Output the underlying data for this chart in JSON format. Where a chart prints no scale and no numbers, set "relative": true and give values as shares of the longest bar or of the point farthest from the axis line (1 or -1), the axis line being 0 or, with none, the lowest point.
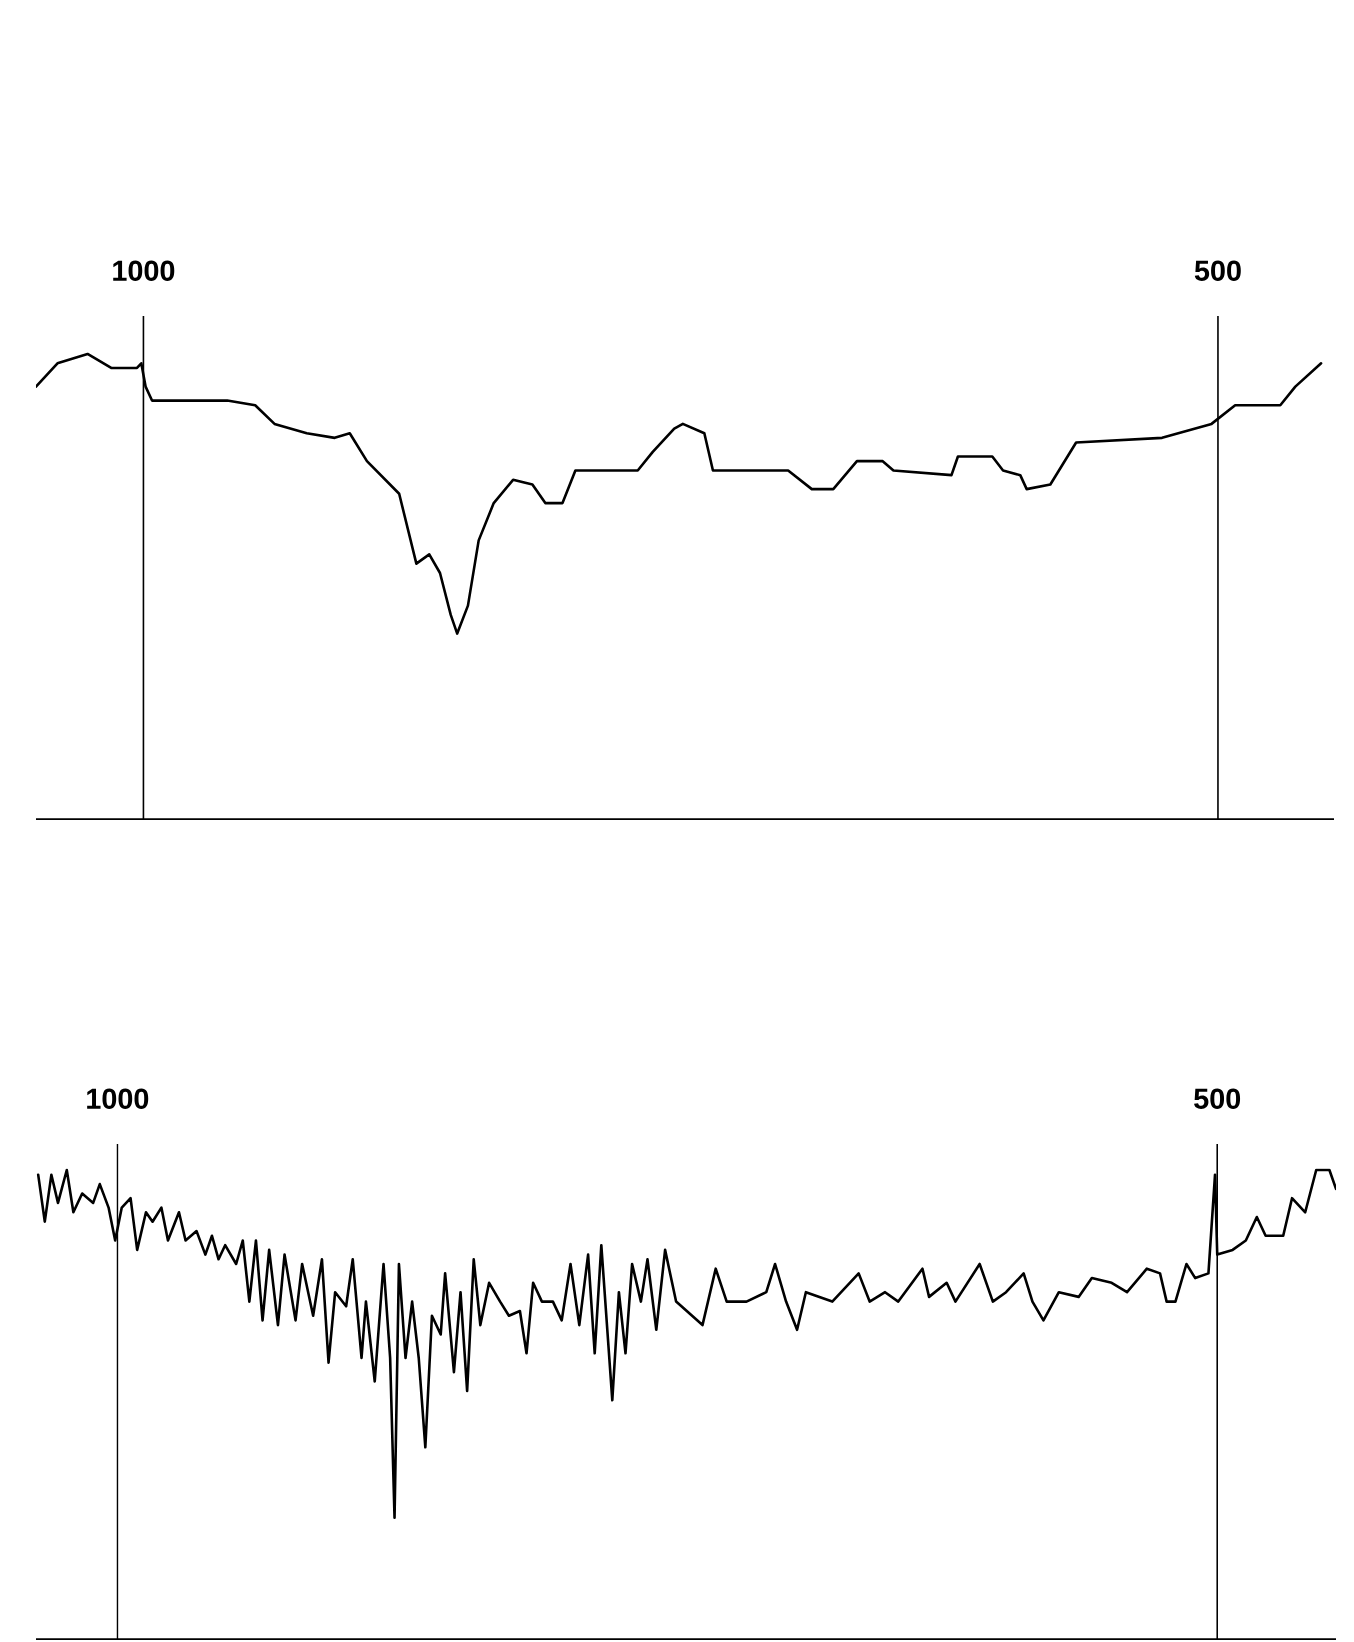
{
  "chart_data": [
    {
      "type": "line",
      "relative": true,
      "xlim": [
        1050,
        446
      ],
      "xticks": [
        1000,
        500
      ],
      "grid": "x",
      "x": [
        1050,
        1040,
        1026,
        1015,
        1003,
        1001,
        999,
        996,
        961,
        948,
        939,
        924,
        911,
        904,
        896,
        881,
        873,
        867,
        862,
        857,
        854,
        849,
        844,
        837,
        828,
        819,
        813,
        805,
        799,
        770,
        763,
        753,
        749,
        739,
        735,
        700,
        689,
        679,
        668,
        656,
        651,
        624,
        621,
        605,
        600,
        592,
        589,
        578,
        566,
        526,
        503,
        492,
        471,
        464,
        452
      ],
      "series": [
        {
          "color": "#000000",
          "values": [
            0.93,
            0.98,
            1.0,
            0.97,
            0.97,
            0.98,
            0.93,
            0.9,
            0.9,
            0.89,
            0.85,
            0.83,
            0.82,
            0.83,
            0.77,
            0.7,
            0.55,
            0.57,
            0.53,
            0.44,
            0.4,
            0.46,
            0.6,
            0.68,
            0.73,
            0.72,
            0.68,
            0.68,
            0.75,
            0.75,
            0.79,
            0.84,
            0.85,
            0.83,
            0.75,
            0.75,
            0.71,
            0.71,
            0.77,
            0.77,
            0.75,
            0.74,
            0.78,
            0.78,
            0.75,
            0.74,
            0.71,
            0.72,
            0.81,
            0.82,
            0.85,
            0.89,
            0.89,
            0.93,
            0.98
          ]
        }
      ]
    },
    {
      "type": "line",
      "relative": true,
      "xlim": [
        1037,
        446
      ],
      "xticks": [
        1000,
        500
      ],
      "grid": "x",
      "x": [
        1036,
        1033,
        1030,
        1027,
        1023,
        1020,
        1016,
        1011,
        1008,
        1004,
        1001,
        998,
        994,
        991,
        987,
        984,
        980,
        977,
        972,
        969,
        964,
        960,
        957,
        954,
        951,
        946,
        943,
        940,
        937,
        934,
        931,
        927,
        924,
        919,
        916,
        911,
        907,
        904,
        901,
        896,
        893,
        889,
        887,
        883,
        879,
        876,
        874,
        872,
        869,
        866,
        863,
        860,
        857,
        853,
        851,
        847,
        844,
        841,
        838,
        835,
        831,
        826,
        822,
        817,
        814,
        811,
        807,
        802,
        798,
        794,
        790,
        786,
        783,
        780,
        775,
        772,
        769,
        766,
        762,
        759,
        755,
        751,
        746,
        734,
        728,
        723,
        714,
        705,
        701,
        696,
        691,
        687,
        675,
        663,
        658,
        651,
        645,
        634,
        631,
        623,
        619,
        608,
        602,
        596,
        588,
        584,
        579,
        572,
        563,
        557,
        548,
        541,
        532,
        526,
        523,
        519,
        514,
        510,
        504,
        501,
        500,
        493,
        487,
        482,
        478,
        470,
        466,
        460,
        455,
        449,
        446
      ],
      "series": [
        {
          "color": "#000000",
          "values": [
            0.99,
            0.89,
            0.99,
            0.93,
            1.0,
            0.91,
            0.95,
            0.93,
            0.97,
            0.92,
            0.85,
            0.92,
            0.94,
            0.83,
            0.91,
            0.89,
            0.92,
            0.85,
            0.91,
            0.85,
            0.87,
            0.82,
            0.86,
            0.81,
            0.84,
            0.8,
            0.85,
            0.72,
            0.85,
            0.68,
            0.83,
            0.67,
            0.82,
            0.68,
            0.8,
            0.69,
            0.81,
            0.59,
            0.74,
            0.71,
            0.81,
            0.6,
            0.72,
            0.55,
            0.8,
            0.6,
            0.26,
            0.8,
            0.6,
            0.72,
            0.6,
            0.41,
            0.69,
            0.65,
            0.78,
            0.57,
            0.74,
            0.53,
            0.81,
            0.67,
            0.76,
            0.72,
            0.69,
            0.7,
            0.61,
            0.76,
            0.72,
            0.72,
            0.68,
            0.8,
            0.67,
            0.82,
            0.61,
            0.84,
            0.51,
            0.74,
            0.61,
            0.8,
            0.72,
            0.81,
            0.66,
            0.83,
            0.72,
            0.67,
            0.79,
            0.72,
            0.72,
            0.74,
            0.8,
            0.72,
            0.66,
            0.74,
            0.72,
            0.78,
            0.72,
            0.74,
            0.72,
            0.79,
            0.73,
            0.76,
            0.72,
            0.8,
            0.72,
            0.74,
            0.78,
            0.72,
            0.68,
            0.74,
            0.73,
            0.77,
            0.76,
            0.74,
            0.79,
            0.78,
            0.72,
            0.72,
            0.8,
            0.77,
            0.78,
            0.99,
            0.82,
            0.83,
            0.85,
            0.9,
            0.86,
            0.86,
            0.94,
            0.91,
            1.0,
            1.0,
            0.96
          ]
        }
      ]
    }
  ]
}
